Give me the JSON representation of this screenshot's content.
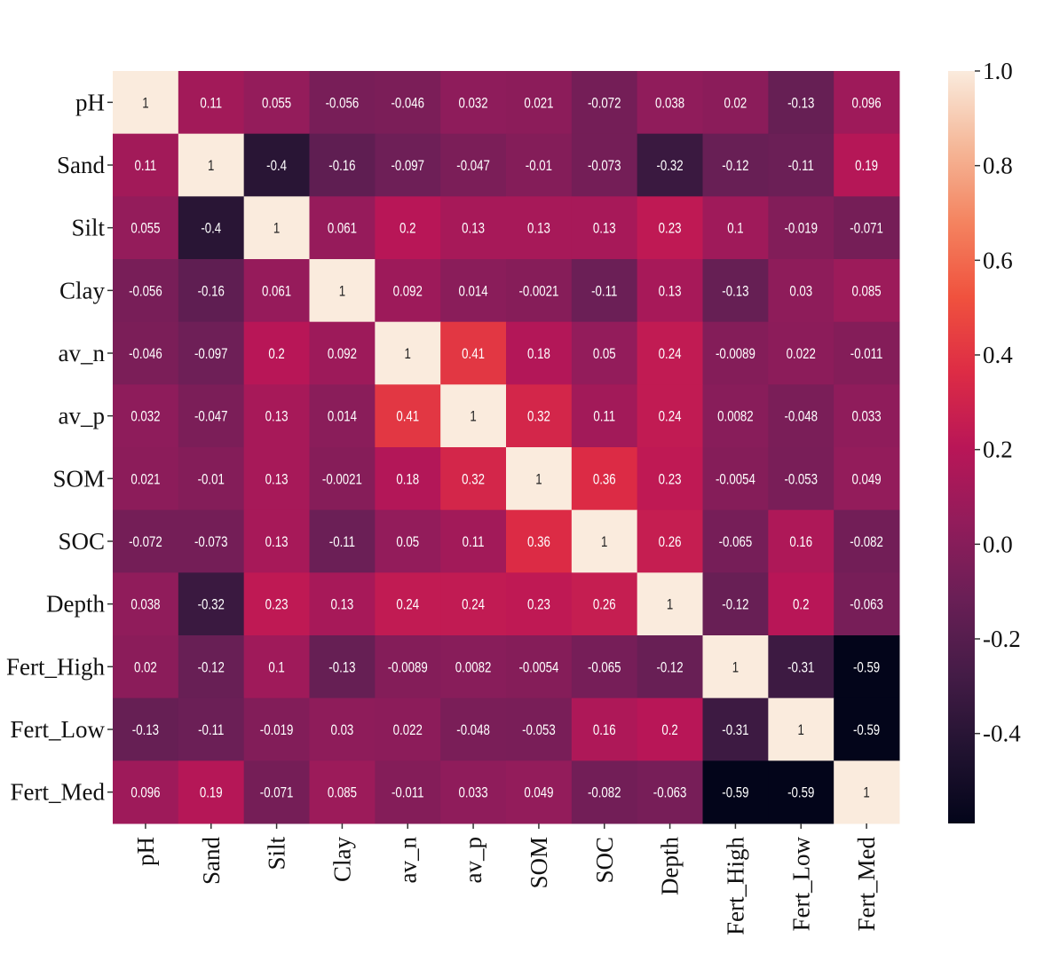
{
  "chart_data": {
    "type": "heatmap",
    "title": "",
    "xlabel": "",
    "ylabel": "",
    "row_labels": [
      "pH",
      "Sand",
      "Silt",
      "Clay",
      "av_n",
      "av_p",
      "SOM",
      "SOC",
      "Depth",
      "Fert_High",
      "Fert_Low",
      "Fert_Med"
    ],
    "col_labels": [
      "pH",
      "Sand",
      "Silt",
      "Clay",
      "av_n",
      "av_p",
      "SOM",
      "SOC",
      "Depth",
      "Fert_High",
      "Fert_Low",
      "Fert_Med"
    ],
    "values": [
      [
        "1",
        "0.11",
        "0.055",
        "-0.056",
        "-0.046",
        "0.032",
        "0.021",
        "-0.072",
        "0.038",
        "0.02",
        "-0.13",
        "0.096"
      ],
      [
        "0.11",
        "1",
        "-0.4",
        "-0.16",
        "-0.097",
        "-0.047",
        "-0.01",
        "-0.073",
        "-0.32",
        "-0.12",
        "-0.11",
        "0.19"
      ],
      [
        "0.055",
        "-0.4",
        "1",
        "0.061",
        "0.2",
        "0.13",
        "0.13",
        "0.13",
        "0.23",
        "0.1",
        "-0.019",
        "-0.071"
      ],
      [
        "-0.056",
        "-0.16",
        "0.061",
        "1",
        "0.092",
        "0.014",
        "-0.0021",
        "-0.11",
        "0.13",
        "-0.13",
        "0.03",
        "0.085"
      ],
      [
        "-0.046",
        "-0.097",
        "0.2",
        "0.092",
        "1",
        "0.41",
        "0.18",
        "0.05",
        "0.24",
        "-0.0089",
        "0.022",
        "-0.011"
      ],
      [
        "0.032",
        "-0.047",
        "0.13",
        "0.014",
        "0.41",
        "1",
        "0.32",
        "0.11",
        "0.24",
        "0.0082",
        "-0.048",
        "0.033"
      ],
      [
        "0.021",
        "-0.01",
        "0.13",
        "-0.0021",
        "0.18",
        "0.32",
        "1",
        "0.36",
        "0.23",
        "-0.0054",
        "-0.053",
        "0.049"
      ],
      [
        "-0.072",
        "-0.073",
        "0.13",
        "-0.11",
        "0.05",
        "0.11",
        "0.36",
        "1",
        "0.26",
        "-0.065",
        "0.16",
        "-0.082"
      ],
      [
        "0.038",
        "-0.32",
        "0.23",
        "0.13",
        "0.24",
        "0.24",
        "0.23",
        "0.26",
        "1",
        "-0.12",
        "0.2",
        "-0.063"
      ],
      [
        "0.02",
        "-0.12",
        "0.1",
        "-0.13",
        "-0.0089",
        "0.0082",
        "-0.0054",
        "-0.065",
        "-0.12",
        "1",
        "-0.31",
        "-0.59"
      ],
      [
        "-0.13",
        "-0.11",
        "-0.019",
        "0.03",
        "0.022",
        "-0.048",
        "-0.053",
        "0.16",
        "0.2",
        "-0.31",
        "1",
        "-0.59"
      ],
      [
        "0.096",
        "0.19",
        "-0.071",
        "0.085",
        "-0.011",
        "0.033",
        "0.049",
        "-0.082",
        "-0.063",
        "-0.59",
        "-0.59",
        "1"
      ]
    ],
    "colormap": "rocket",
    "vmin": -0.59,
    "vmax": 1.0,
    "colorbar": {
      "ticks": [
        "1.0",
        "0.8",
        "0.6",
        "0.4",
        "0.2",
        "0.0",
        "-0.2",
        "-0.4"
      ],
      "placement": "right"
    },
    "grid": false
  }
}
